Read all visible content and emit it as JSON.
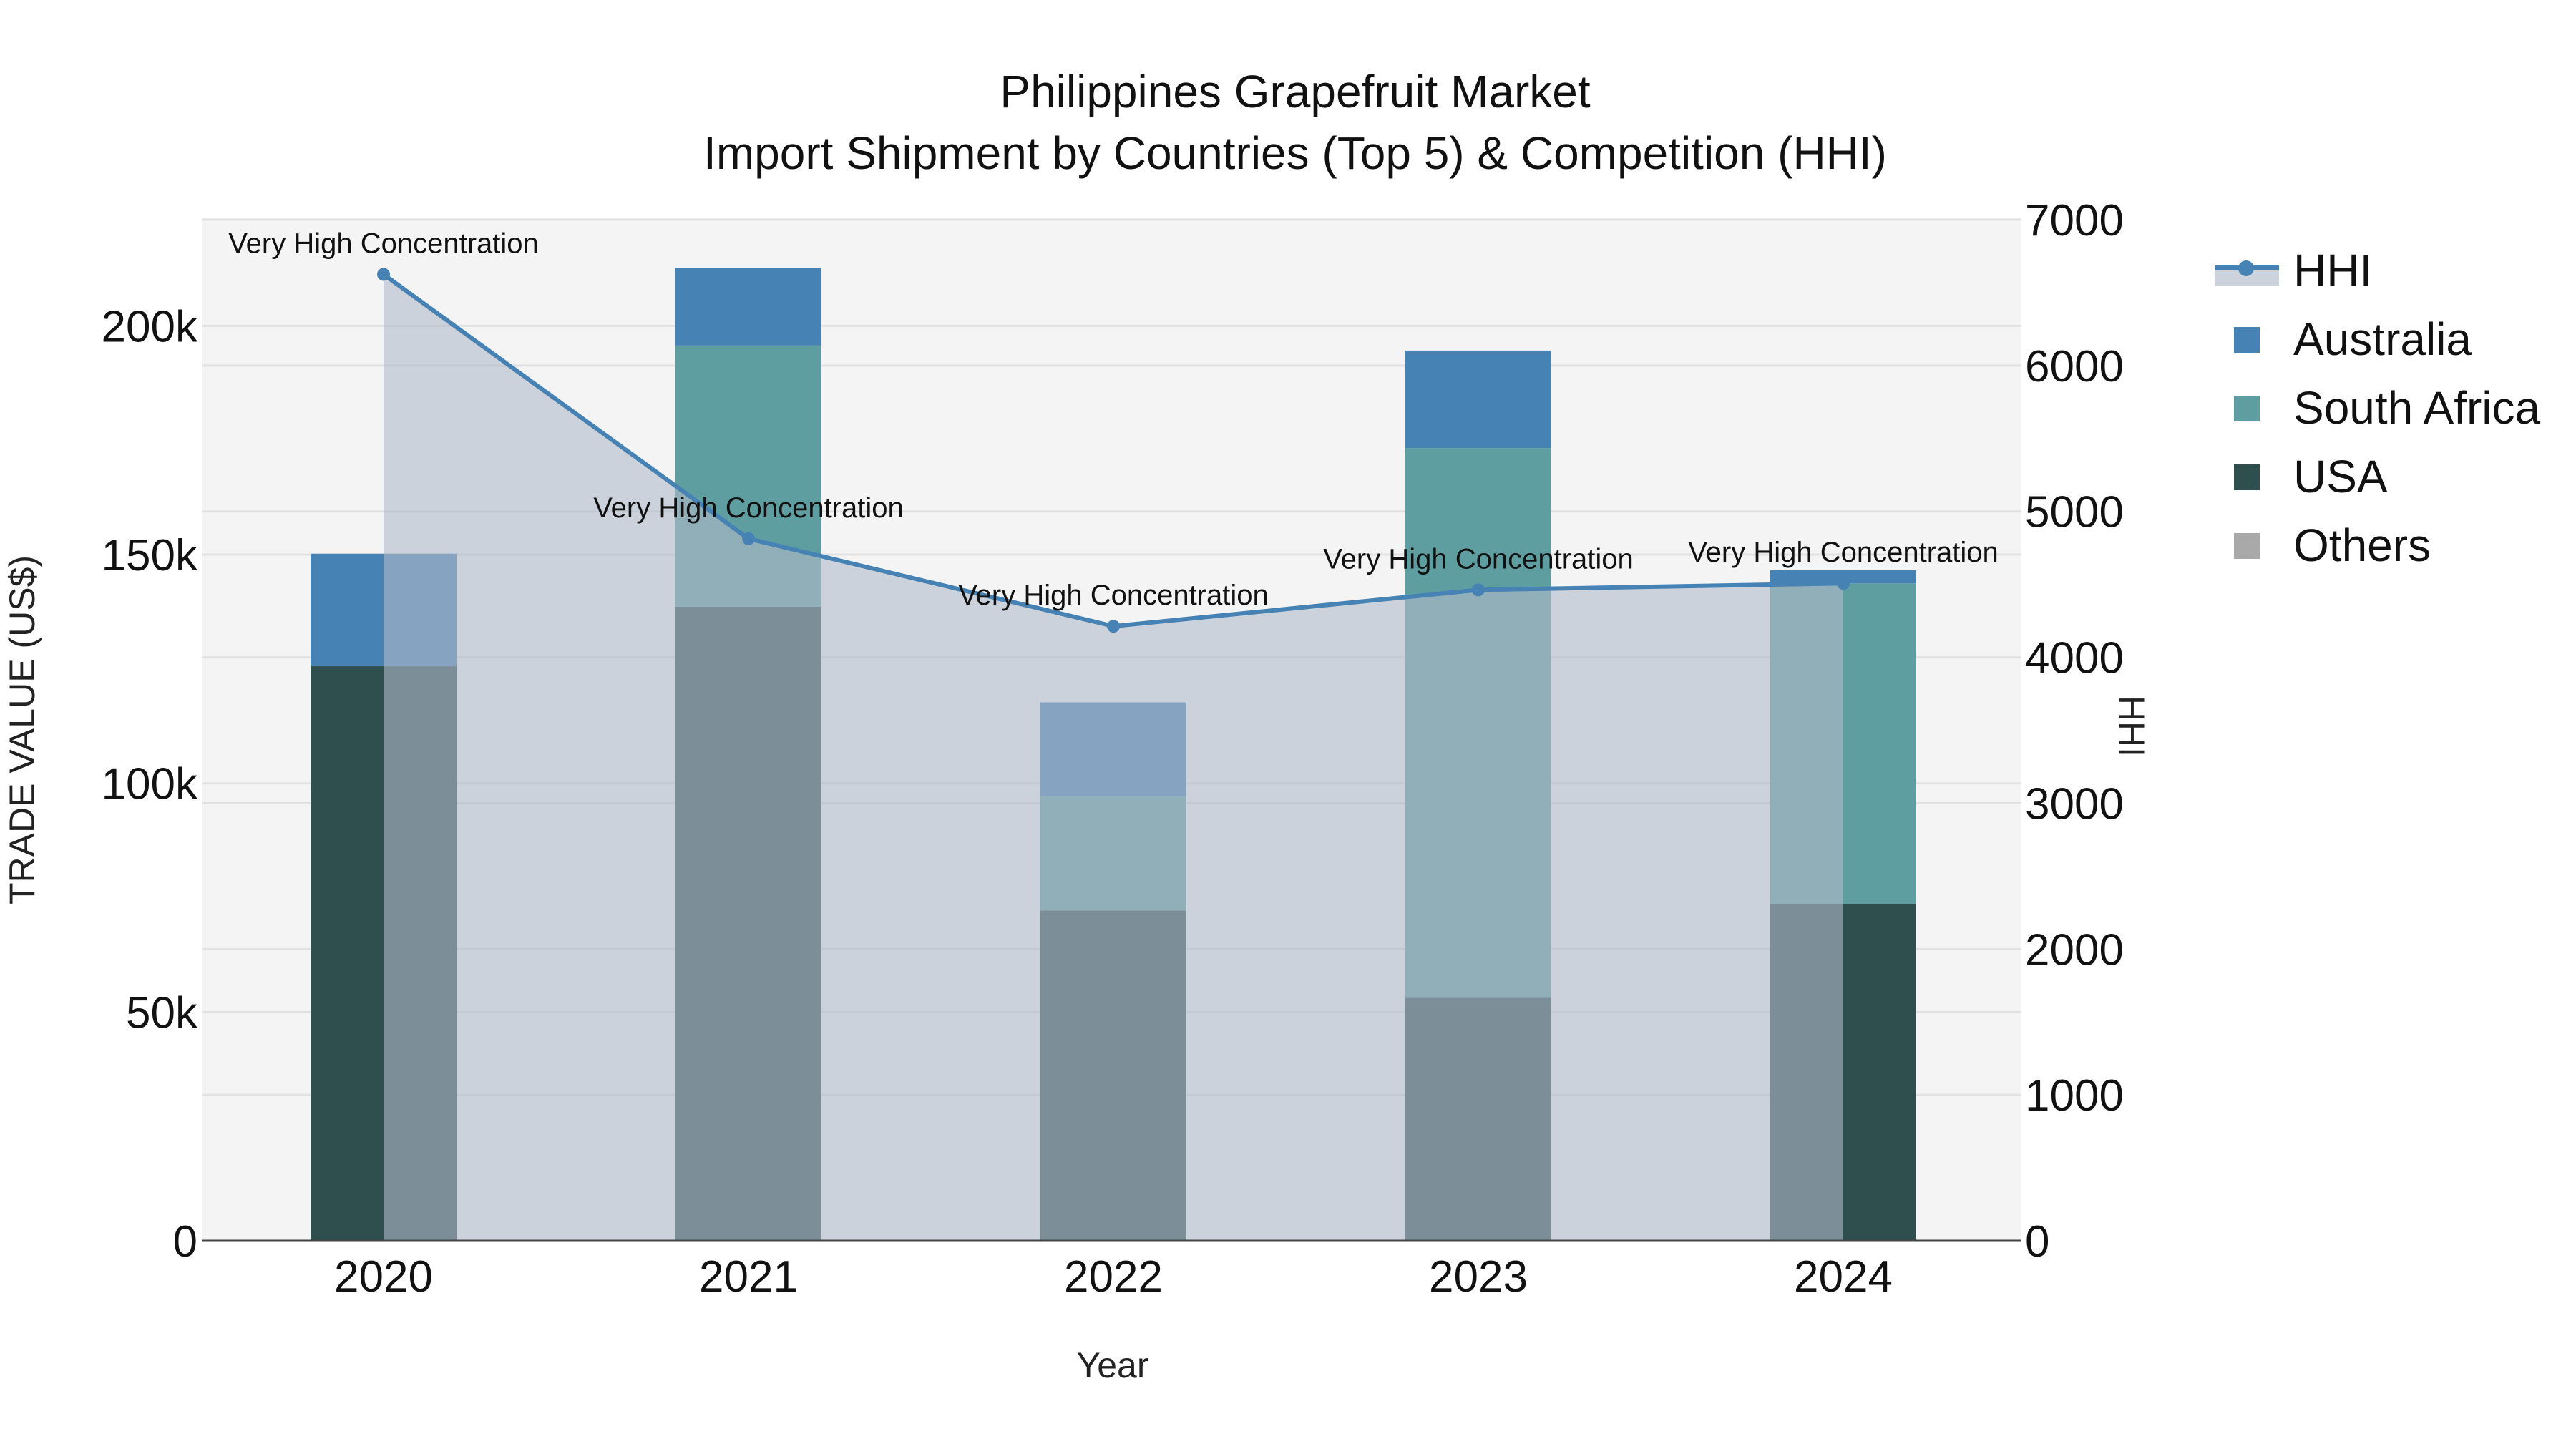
{
  "title": {
    "line1": "Philippines Grapefruit Market",
    "line2": "Import Shipment by Countries (Top 5) & Competition (HHI)"
  },
  "axes": {
    "x_title": "Year",
    "y_left_title": "TRADE VALUE (US$)",
    "y_right_title": "HHI",
    "y_left_ticks": [
      "0",
      "50k",
      "100k",
      "150k",
      "200k"
    ],
    "y_right_ticks": [
      "0",
      "1000",
      "2000",
      "3000",
      "4000",
      "5000",
      "6000",
      "7000"
    ],
    "x_ticks": [
      "2020",
      "2021",
      "2022",
      "2023",
      "2024"
    ]
  },
  "legend": {
    "items": [
      {
        "label": "HHI",
        "color": "#4682B4",
        "kind": "line-area"
      },
      {
        "label": "Australia",
        "color": "#4682B4",
        "kind": "square"
      },
      {
        "label": "South Africa",
        "color": "#5F9EA0",
        "kind": "square"
      },
      {
        "label": "USA",
        "color": "#2F4F4F",
        "kind": "square"
      },
      {
        "label": "Others",
        "color": "#A9A9A9",
        "kind": "square"
      }
    ]
  },
  "annotations": [
    "Very High Concentration",
    "Very High Concentration",
    "Very High Concentration",
    "Very High Concentration",
    "Very High Concentration"
  ],
  "colors": {
    "plot_bg": "#F4F4F4",
    "grid": "#E2E2E2",
    "australia": "#4682B4",
    "south_africa": "#5F9EA0",
    "usa": "#2F4F4F",
    "others": "#A9A9A9",
    "hhi_line": "#4682B4",
    "hhi_fill": "rgba(176,186,202,0.6)"
  },
  "chart_data": {
    "type": "bar",
    "title": "Philippines Grapefruit Market — Import Shipment by Countries (Top 5) & Competition (HHI)",
    "xlabel": "Year",
    "ylabel": "TRADE VALUE (US$)",
    "y2label": "HHI",
    "categories": [
      "2020",
      "2021",
      "2022",
      "2023",
      "2024"
    ],
    "stacked": true,
    "ylim": [
      0,
      222000
    ],
    "y2lim": [
      0,
      7000
    ],
    "grid": true,
    "legend_position": "right",
    "series": [
      {
        "name": "USA",
        "type": "bar",
        "axis": "left",
        "values": [
          125600,
          138600,
          72200,
          53100,
          73600
        ]
      },
      {
        "name": "South Africa",
        "type": "bar",
        "axis": "left",
        "values": [
          0,
          57100,
          24900,
          120200,
          70100
        ]
      },
      {
        "name": "Australia",
        "type": "bar",
        "axis": "left",
        "values": [
          24600,
          16900,
          20600,
          21300,
          2900
        ]
      },
      {
        "name": "Others",
        "type": "bar",
        "axis": "left",
        "values": [
          0,
          0,
          0,
          0,
          0
        ]
      },
      {
        "name": "HHI",
        "type": "line+area",
        "axis": "right",
        "values": [
          6625,
          4813,
          4213,
          4462,
          4507
        ]
      }
    ],
    "annotations": [
      {
        "x": "2020",
        "text": "Very High Concentration"
      },
      {
        "x": "2021",
        "text": "Very High Concentration"
      },
      {
        "x": "2022",
        "text": "Very High Concentration"
      },
      {
        "x": "2023",
        "text": "Very High Concentration"
      },
      {
        "x": "2024",
        "text": "Very High Concentration"
      }
    ]
  }
}
